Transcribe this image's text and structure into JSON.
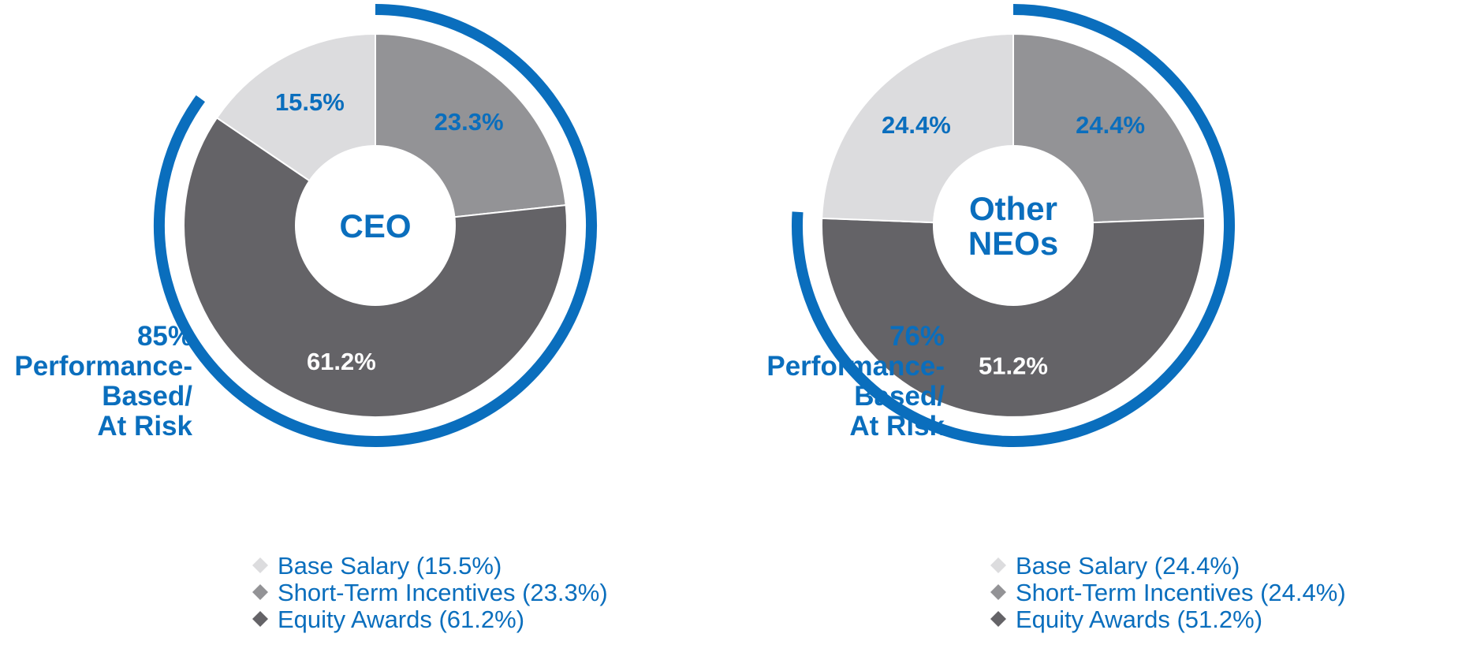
{
  "colors": {
    "accent_blue": "#0a6ebd",
    "base_salary": "#dcdcde",
    "short_term_incentives": "#939396",
    "equity_awards": "#646367",
    "label_white": "#ffffff",
    "legend_text": "#0a6ebd"
  },
  "chart_data": [
    {
      "type": "pie",
      "variant": "donut",
      "title": "CEO",
      "center_label_lines": [
        "CEO"
      ],
      "slices": [
        {
          "name": "Short-Term Incentives",
          "value": 23.3,
          "label": "23.3%",
          "color_key": "short_term_incentives",
          "label_color": "accent_blue"
        },
        {
          "name": "Equity Awards",
          "value": 61.2,
          "label": "61.2%",
          "color_key": "equity_awards",
          "label_color": "label_white"
        },
        {
          "name": "Base Salary",
          "value": 15.5,
          "label": "15.5%",
          "color_key": "base_salary",
          "label_color": "accent_blue"
        }
      ],
      "start": "top, clockwise",
      "at_risk_percent": 85,
      "at_risk_label_lines": [
        "85%",
        "Performance-",
        "Based/",
        "At Risk"
      ],
      "legend": [
        {
          "label": "Base Salary (15.5%)",
          "color_key": "base_salary"
        },
        {
          "label": "Short-Term Incentives (23.3%)",
          "color_key": "short_term_incentives"
        },
        {
          "label": "Equity Awards (61.2%)",
          "color_key": "equity_awards"
        }
      ]
    },
    {
      "type": "pie",
      "variant": "donut",
      "title": "Other NEOs",
      "center_label_lines": [
        "Other",
        "NEOs"
      ],
      "slices": [
        {
          "name": "Short-Term Incentives",
          "value": 24.4,
          "label": "24.4%",
          "color_key": "short_term_incentives",
          "label_color": "accent_blue"
        },
        {
          "name": "Equity Awards",
          "value": 51.2,
          "label": "51.2%",
          "color_key": "equity_awards",
          "label_color": "label_white"
        },
        {
          "name": "Base Salary",
          "value": 24.4,
          "label": "24.4%",
          "color_key": "base_salary",
          "label_color": "accent_blue"
        }
      ],
      "start": "top, clockwise",
      "at_risk_percent": 76,
      "at_risk_label_lines": [
        "76%",
        "Performance-",
        "Based/",
        "At Risk"
      ],
      "legend": [
        {
          "label": "Base Salary (24.4%)",
          "color_key": "base_salary"
        },
        {
          "label": "Short-Term Incentives (24.4%)",
          "color_key": "short_term_incentives"
        },
        {
          "label": "Equity Awards (51.2%)",
          "color_key": "equity_awards"
        }
      ]
    }
  ]
}
